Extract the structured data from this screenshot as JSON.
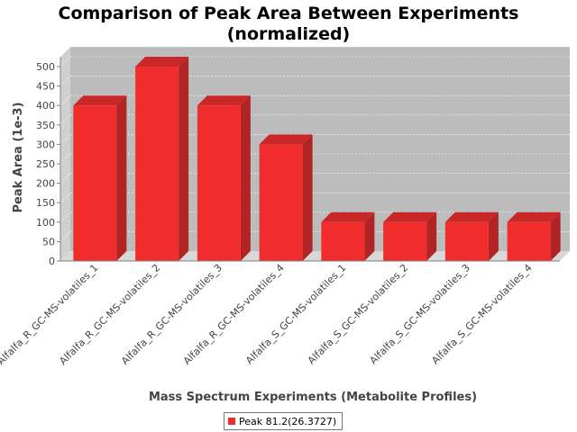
{
  "chart_data": {
    "type": "bar",
    "title_line1": "Comparison of Peak Area Between Experiments",
    "title_line2": "(normalized)",
    "xlabel": "Mass Spectrum Experiments (Metabolite Profiles)",
    "ylabel": "Peak Area (1e-3)",
    "categories": [
      "Alfalfa_R_GC-MS-volatiles_1",
      "Alfalfa_R_GC-MS-volatiles_2",
      "Alfalfa_R_GC-MS-volatiles_3",
      "Alfalfa_R_GC-MS-volatiles_4",
      "Alfalfa_S_GC-MS-volatiles_1",
      "Alfalfa_S_GC-MS-volatiles_2",
      "Alfalfa_S_GC-MS-volatiles_3",
      "Alfalfa_S_GC-MS-volatiles_4"
    ],
    "series": [
      {
        "name": "Peak 81.2(26.3727)",
        "values": [
          400,
          500,
          400,
          300,
          100,
          100,
          100,
          100
        ]
      }
    ],
    "ylim": [
      0,
      525
    ],
    "yticks": [
      0,
      50,
      100,
      150,
      200,
      250,
      300,
      350,
      400,
      450,
      500
    ],
    "grid": true,
    "legend_position": "bottom",
    "colors": {
      "bar_front": "#f02c2c",
      "bar_side": "#b02424",
      "bar_top": "#c82828",
      "plot_back": "#bcbcbc",
      "plot_floor": "#d8d8d8",
      "gridline": "#ffffff"
    }
  }
}
